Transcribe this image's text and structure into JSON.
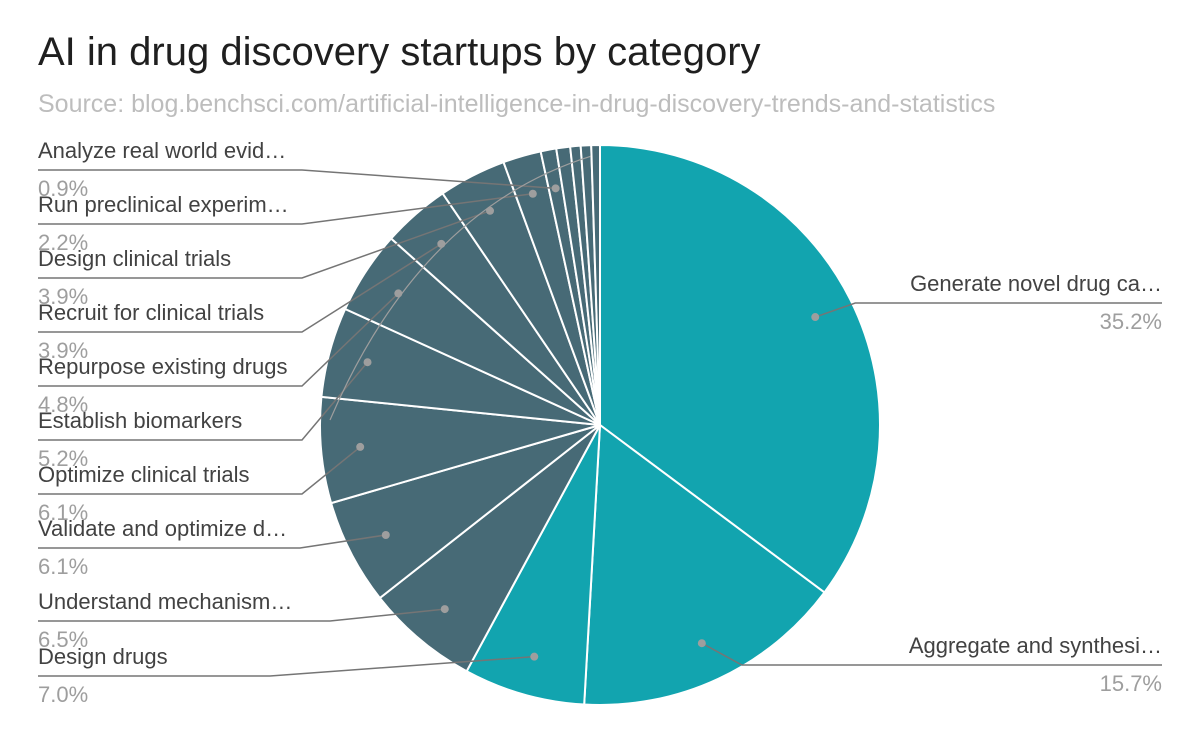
{
  "chart_data": {
    "type": "pie",
    "title": "AI in drug discovery startups by category",
    "subtitle": "Source: blog.benchsci.com/artificial-intelligence-in-drug-discovery-trends-and-statistics",
    "legend": "none",
    "slices": [
      {
        "label": "Generate novel drug ca…",
        "percent_label": "35.2%",
        "value": 35.2,
        "color": "#12a4af"
      },
      {
        "label": "Aggregate and synthesi…",
        "percent_label": "15.7%",
        "value": 15.7,
        "color": "#12a4af"
      },
      {
        "label": "Design drugs",
        "percent_label": "7.0%",
        "value": 7.0,
        "color": "#12a4af"
      },
      {
        "label": "Understand mechanism…",
        "percent_label": "6.5%",
        "value": 6.5,
        "color": "#476a76"
      },
      {
        "label": "Validate and optimize d…",
        "percent_label": "6.1%",
        "value": 6.1,
        "color": "#476a76"
      },
      {
        "label": "Optimize clinical trials",
        "percent_label": "6.1%",
        "value": 6.1,
        "color": "#476a76"
      },
      {
        "label": "Establish biomarkers",
        "percent_label": "5.2%",
        "value": 5.2,
        "color": "#476a76"
      },
      {
        "label": "Repurpose existing drugs",
        "percent_label": "4.8%",
        "value": 4.8,
        "color": "#476a76"
      },
      {
        "label": "Recruit for clinical trials",
        "percent_label": "3.9%",
        "value": 3.9,
        "color": "#476a76"
      },
      {
        "label": "Design clinical trials",
        "percent_label": "3.9%",
        "value": 3.9,
        "color": "#476a76"
      },
      {
        "label": "Run preclinical experim…",
        "percent_label": "2.2%",
        "value": 2.2,
        "color": "#476a76"
      },
      {
        "label": "Analyze real world evid…",
        "percent_label": "0.9%",
        "value": 0.9,
        "color": "#476a76"
      },
      {
        "label": "",
        "percent_label": "",
        "value": 0.8,
        "color": "#476a76"
      },
      {
        "label": "",
        "percent_label": "",
        "value": 0.6,
        "color": "#476a76"
      },
      {
        "label": "",
        "percent_label": "",
        "value": 0.6,
        "color": "#476a76"
      },
      {
        "label": "",
        "percent_label": "",
        "value": 0.5,
        "color": "#476a76"
      }
    ]
  }
}
